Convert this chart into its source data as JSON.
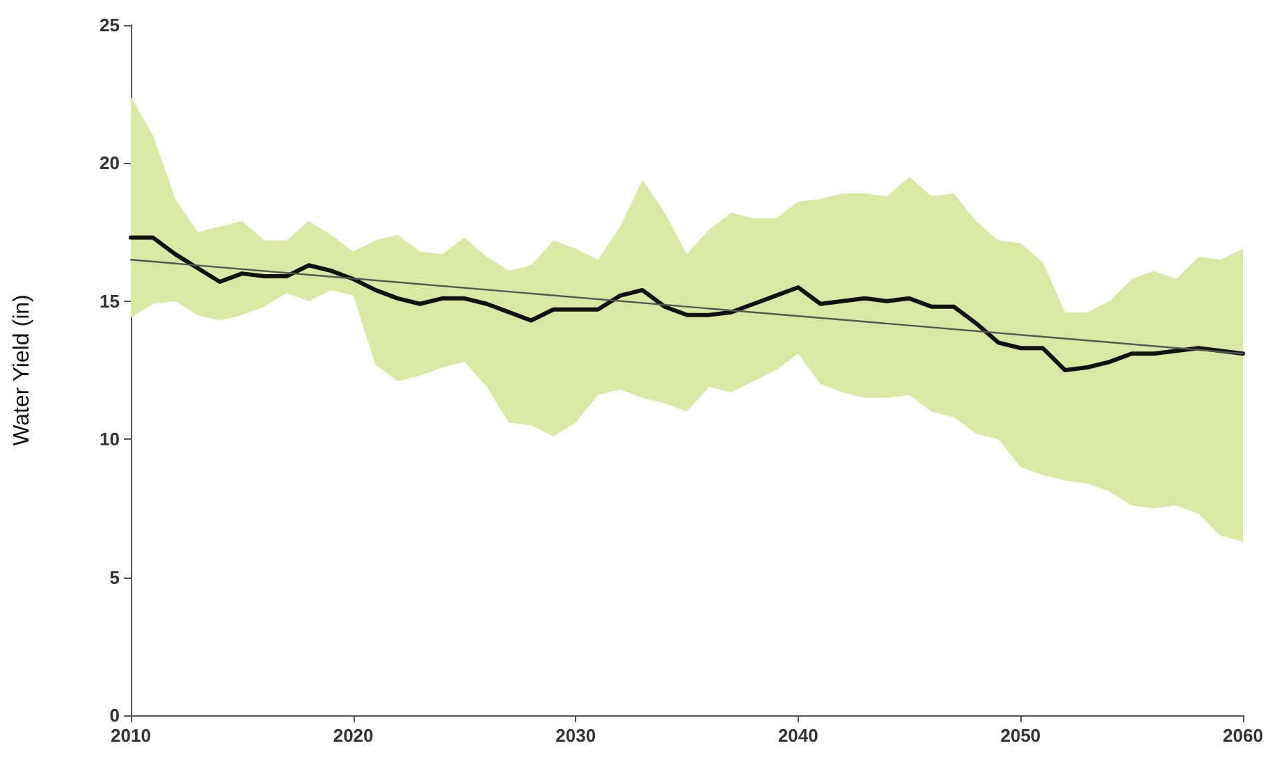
{
  "chart_data": {
    "type": "line",
    "ylabel": "Water Yield (in)",
    "x": [
      2010,
      2011,
      2012,
      2013,
      2014,
      2015,
      2016,
      2017,
      2018,
      2019,
      2020,
      2021,
      2022,
      2023,
      2024,
      2025,
      2026,
      2027,
      2028,
      2029,
      2030,
      2031,
      2032,
      2033,
      2034,
      2035,
      2036,
      2037,
      2038,
      2039,
      2040,
      2041,
      2042,
      2043,
      2044,
      2045,
      2046,
      2047,
      2048,
      2049,
      2050,
      2051,
      2052,
      2053,
      2054,
      2055,
      2056,
      2057,
      2058,
      2059,
      2060
    ],
    "series": [
      {
        "color": "#111111",
        "values": [
          17.3,
          17.3,
          16.7,
          16.2,
          15.7,
          16.0,
          15.9,
          15.9,
          16.3,
          16.1,
          15.8,
          15.4,
          15.1,
          14.9,
          15.1,
          15.1,
          14.9,
          14.6,
          14.3,
          14.7,
          14.7,
          14.7,
          15.2,
          15.4,
          14.8,
          14.5,
          14.5,
          14.6,
          14.9,
          15.2,
          15.5,
          14.9,
          15.0,
          15.1,
          15.0,
          15.1,
          14.8,
          14.8,
          14.2,
          13.5,
          13.3,
          13.3,
          12.5,
          12.6,
          12.8,
          13.1,
          13.1,
          13.2,
          13.3,
          13.2,
          13.1
        ],
        "upper": [
          22.4,
          21.0,
          18.7,
          17.5,
          17.7,
          17.9,
          17.2,
          17.2,
          17.9,
          17.4,
          16.8,
          17.2,
          17.4,
          16.8,
          16.7,
          17.3,
          16.6,
          16.1,
          16.3,
          17.2,
          16.9,
          16.5,
          17.7,
          19.4,
          18.2,
          16.7,
          17.6,
          18.2,
          18.0,
          18.0,
          18.6,
          18.7,
          18.9,
          18.9,
          18.8,
          19.5,
          18.8,
          18.9,
          17.9,
          17.2,
          17.1,
          16.4,
          14.6,
          14.6,
          15.0,
          15.8,
          16.1,
          15.8,
          16.6,
          16.5,
          16.9
        ],
        "lower": [
          14.4,
          14.9,
          15.0,
          14.5,
          14.3,
          14.5,
          14.8,
          15.3,
          15.0,
          15.4,
          15.2,
          12.7,
          12.1,
          12.3,
          12.6,
          12.8,
          11.9,
          10.6,
          10.5,
          10.1,
          10.6,
          11.6,
          11.8,
          11.5,
          11.3,
          11.0,
          11.9,
          11.7,
          12.1,
          12.5,
          13.1,
          12.0,
          11.7,
          11.5,
          11.5,
          11.6,
          11.0,
          10.8,
          10.2,
          10.0,
          9.0,
          8.7,
          8.5,
          8.4,
          8.1,
          7.6,
          7.5,
          7.6,
          7.3,
          6.5,
          6.3
        ]
      },
      {
        "color": "#555555",
        "x": [
          2010,
          2060
        ],
        "values": [
          16.5,
          13.1
        ]
      }
    ],
    "xlim": [
      2010,
      2060
    ],
    "xticks": [
      2010,
      2020,
      2030,
      2040,
      2050,
      2060
    ],
    "ylim": [
      0,
      25
    ],
    "yticks": [
      0,
      5,
      10,
      15,
      20,
      25
    ],
    "grid": false,
    "marker": "none",
    "line_style": "solid"
  }
}
